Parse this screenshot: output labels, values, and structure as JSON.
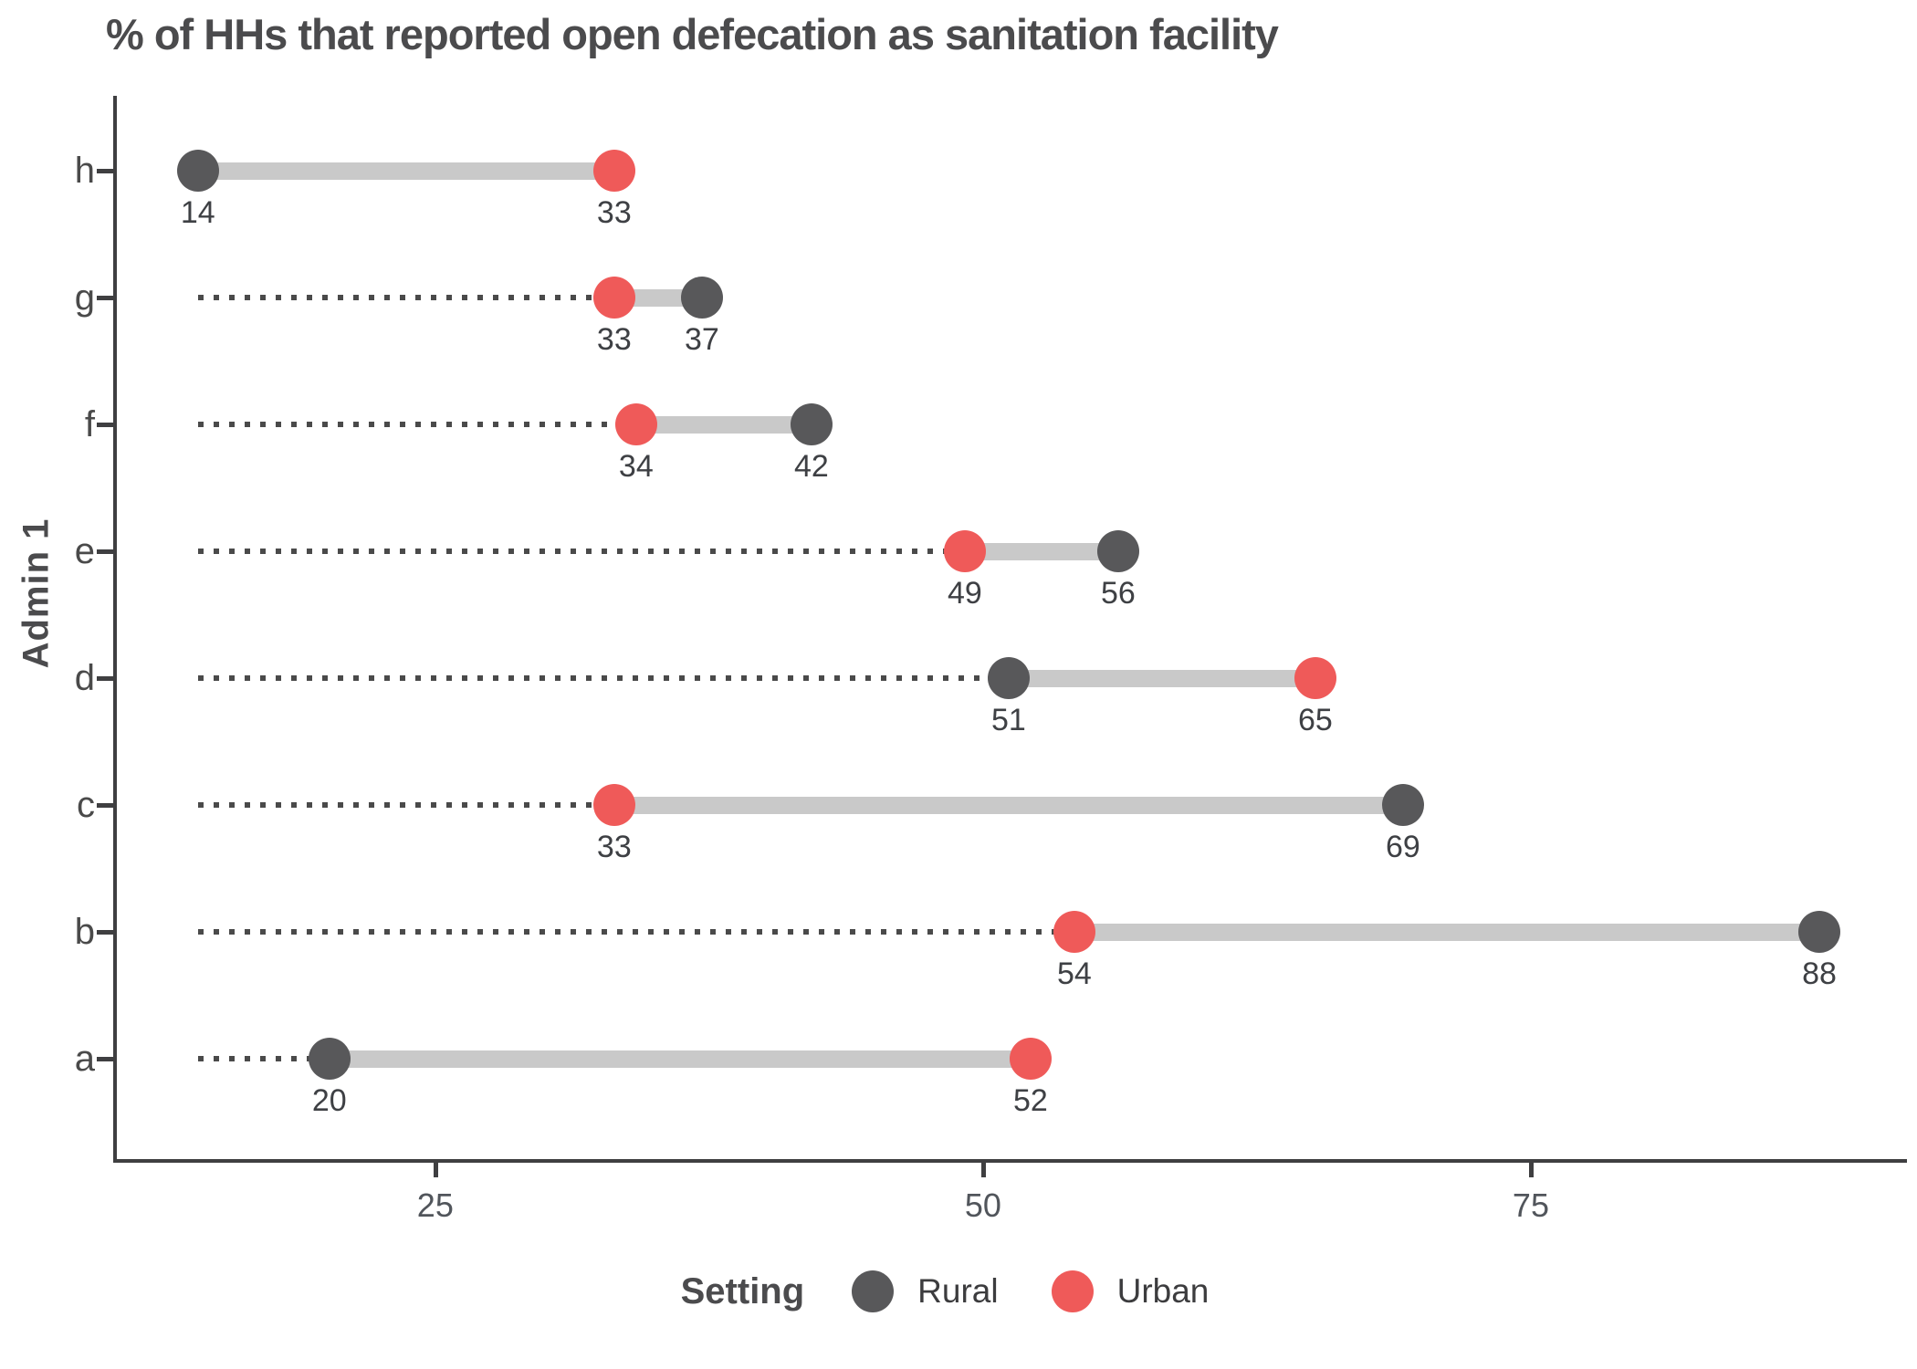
{
  "chart_data": {
    "type": "dumbbell",
    "title": "% of HHs that reported open defecation as sanitation facility",
    "xlabel": "",
    "ylabel": "Admin 1",
    "categories": [
      "h",
      "g",
      "f",
      "e",
      "d",
      "c",
      "b",
      "a"
    ],
    "series": [
      {
        "name": "Rural",
        "color": "#58585a",
        "values": [
          14,
          37,
          42,
          56,
          51,
          69,
          88,
          20
        ]
      },
      {
        "name": "Urban",
        "color": "#ef5a59",
        "values": [
          33,
          33,
          34,
          49,
          65,
          33,
          54,
          52
        ]
      }
    ],
    "x_ticks": [
      25,
      50,
      75
    ],
    "xlim": [
      10.3,
      92
    ],
    "leader_start": 14,
    "grid": false,
    "connector_color": "#c9c9c9",
    "leader_color": "#4a4a4a",
    "axis_color": "#3f3f41",
    "legend_position": "bottom-center"
  },
  "legend": {
    "title": "Setting",
    "entries": [
      {
        "label": "Rural",
        "color": "#58585a"
      },
      {
        "label": "Urban",
        "color": "#ef5a59"
      }
    ]
  }
}
